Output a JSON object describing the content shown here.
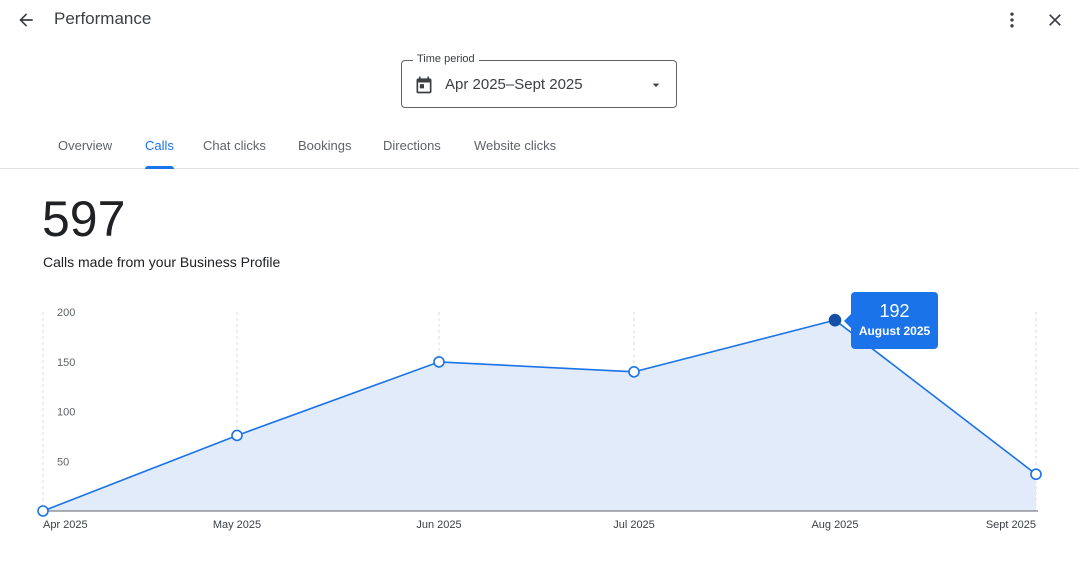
{
  "header": {
    "title": "Performance",
    "back_icon": "arrow-back-icon",
    "more_icon": "more-vert-icon",
    "close_icon": "close-icon"
  },
  "time_period": {
    "label": "Time period",
    "value": "Apr 2025–Sept 2025",
    "icon": "calendar-icon"
  },
  "tabs": [
    {
      "label": "Overview",
      "active": false
    },
    {
      "label": "Calls",
      "active": true
    },
    {
      "label": "Chat clicks",
      "active": false
    },
    {
      "label": "Bookings",
      "active": false
    },
    {
      "label": "Directions",
      "active": false
    },
    {
      "label": "Website clicks",
      "active": false
    }
  ],
  "metric": {
    "value": "597",
    "label": "Calls made from your Business Profile"
  },
  "tooltip": {
    "value": "192",
    "label": "August 2025"
  },
  "colors": {
    "accent": "#1a73e8",
    "highlight_point": "#174ea6",
    "area_fill": "#e2ebfa",
    "text_primary": "#202124",
    "text_secondary": "#5f6368"
  },
  "chart_data": {
    "type": "area",
    "categories": [
      "Apr 2025",
      "May 2025",
      "Jun 2025",
      "Jul 2025",
      "Aug 2025",
      "Sept 2025"
    ],
    "values": [
      0,
      76,
      150,
      140,
      192,
      37
    ],
    "y_ticks": [
      "200",
      "150",
      "100",
      "50"
    ],
    "ylim": [
      0,
      200
    ],
    "highlighted_index": 4,
    "grid": "vertical-dashed"
  }
}
